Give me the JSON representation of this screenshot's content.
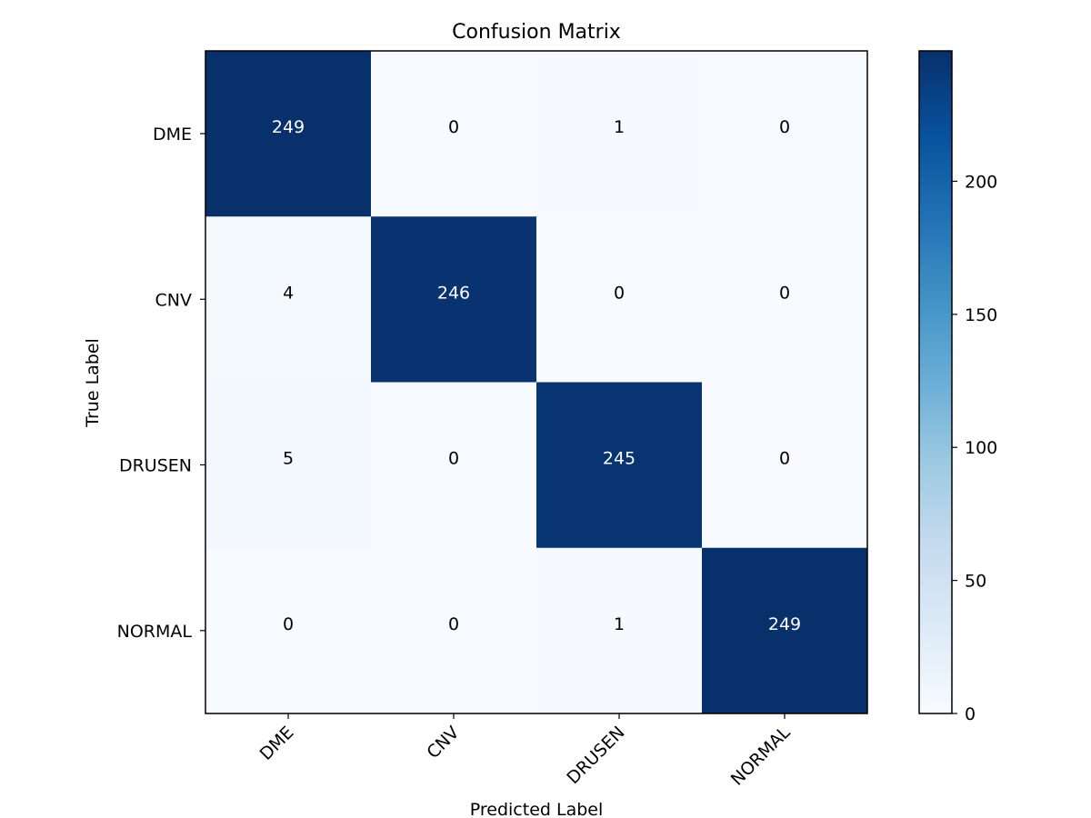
{
  "chart_data": {
    "type": "heatmap",
    "title": "Confusion Matrix",
    "xlabel": "Predicted Label",
    "ylabel": "True Label",
    "x_categories": [
      "DME",
      "CNV",
      "DRUSEN",
      "NORMAL"
    ],
    "y_categories": [
      "DME",
      "CNV",
      "DRUSEN",
      "NORMAL"
    ],
    "matrix": [
      [
        249,
        0,
        1,
        0
      ],
      [
        4,
        246,
        0,
        0
      ],
      [
        5,
        0,
        245,
        0
      ],
      [
        0,
        0,
        1,
        249
      ]
    ],
    "colormap": "Blues",
    "colorbar": {
      "range": [
        0,
        249
      ],
      "ticks": [
        0,
        50,
        100,
        150,
        200
      ]
    },
    "colors": {
      "low": "#f7fbff",
      "high": "#08306b",
      "text_light": "#ffffff",
      "text_dark": "#000000"
    }
  }
}
